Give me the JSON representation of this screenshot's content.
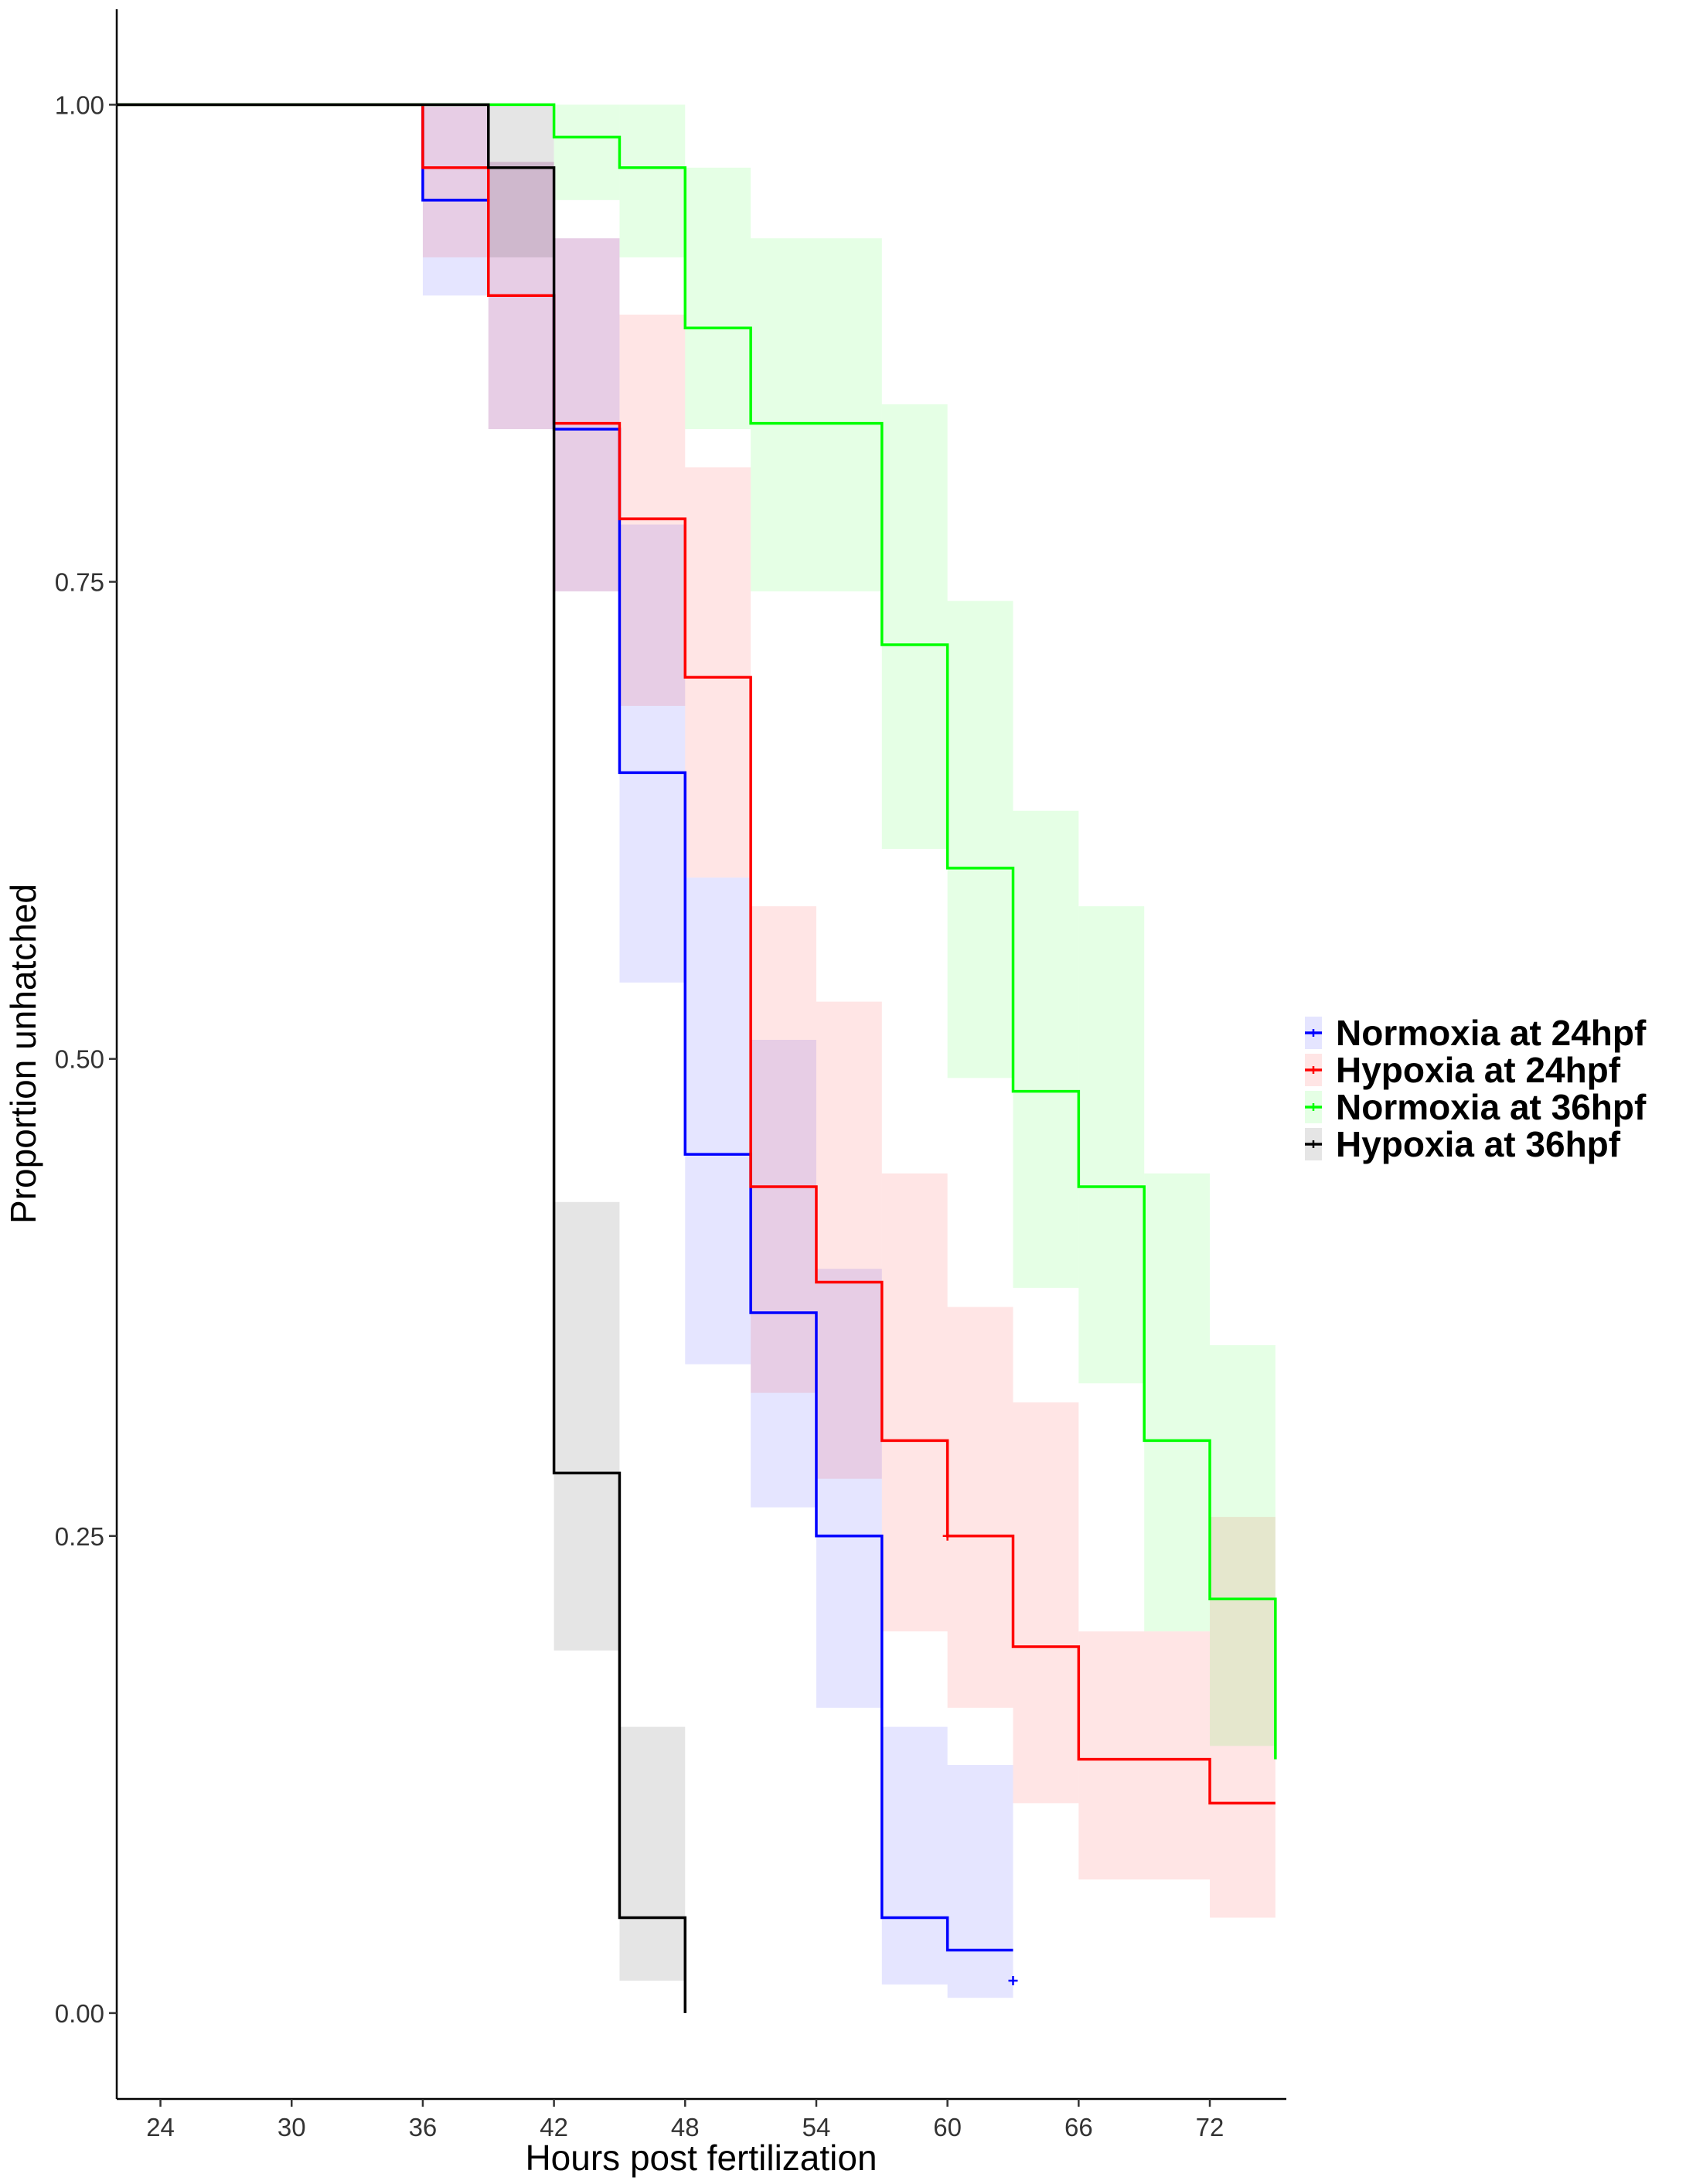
{
  "chart_data": {
    "type": "line",
    "subtype": "kaplan-meier step curves with confidence bands",
    "title": "",
    "xlabel": "Hours post fertilization",
    "ylabel": "Proportion unhatched",
    "xlim": [
      22,
      75.5
    ],
    "ylim": [
      -0.045,
      1.05
    ],
    "xticks": [
      24,
      30,
      36,
      42,
      48,
      54,
      60,
      66,
      72
    ],
    "xtick_labels": [
      "24",
      "30",
      "36",
      "42",
      "48",
      "54",
      "60",
      "66",
      "72"
    ],
    "yticks": [
      0,
      0.25,
      0.5,
      0.75,
      1
    ],
    "ytick_labels": [
      "0.00",
      "0.25",
      "0.50",
      "0.75",
      "1.00"
    ],
    "grid": false,
    "legend_position": "right",
    "series": [
      {
        "name": "Normoxia at 24hpf",
        "color": "#0000ff",
        "band_color": "#e5e5ff",
        "start_x": 22,
        "end_x": 63,
        "steps": [
          [
            36,
            0.95,
            0.9,
            1.0
          ],
          [
            39,
            0.9,
            0.83,
            0.97
          ],
          [
            42,
            0.83,
            0.745,
            0.93
          ],
          [
            45,
            0.783,
            0.685,
            0.89
          ],
          [
            45,
            0.65,
            0.54,
            0.78
          ],
          [
            48,
            0.45,
            0.34,
            0.595
          ],
          [
            51,
            0.367,
            0.265,
            0.51
          ],
          [
            54,
            0.25,
            0.16,
            0.39
          ],
          [
            57,
            0.05,
            0.015,
            0.15
          ],
          [
            60,
            0.033,
            0.008,
            0.13
          ]
        ],
        "censor_marks": [
          [
            63,
            0.017
          ]
        ]
      },
      {
        "name": "Hypoxia at 24hpf",
        "color": "#ff0000",
        "band_color": "#ffe5e5",
        "start_x": 22,
        "end_x": 75,
        "steps": [
          [
            36,
            0.967,
            0.92,
            1.0
          ],
          [
            39,
            0.9,
            0.83,
            0.97
          ],
          [
            42,
            0.833,
            0.745,
            0.93
          ],
          [
            45,
            0.783,
            0.685,
            0.89
          ],
          [
            48,
            0.7,
            0.595,
            0.81
          ],
          [
            51,
            0.433,
            0.325,
            0.58
          ],
          [
            54,
            0.383,
            0.28,
            0.53
          ],
          [
            57,
            0.3,
            0.2,
            0.44
          ],
          [
            60,
            0.25,
            0.16,
            0.37
          ],
          [
            63,
            0.192,
            0.11,
            0.32
          ],
          [
            66,
            0.133,
            0.07,
            0.2
          ],
          [
            72,
            0.11,
            0.05,
            0.26
          ]
        ],
        "censor_marks": [
          [
            60,
            0.25
          ]
        ]
      },
      {
        "name": "Normoxia at 36hpf",
        "color": "#00ff00",
        "band_color": "#e5ffe5",
        "start_x": 22,
        "end_x": 75,
        "steps": [
          [
            42,
            0.983,
            0.95,
            1.0
          ],
          [
            45,
            0.967,
            0.92,
            1.0
          ],
          [
            48,
            0.883,
            0.83,
            0.967
          ],
          [
            51,
            0.833,
            0.745,
            0.93
          ],
          [
            54,
            0.833,
            0.745,
            0.93
          ],
          [
            57,
            0.717,
            0.61,
            0.843
          ],
          [
            60,
            0.6,
            0.49,
            0.74
          ],
          [
            63,
            0.483,
            0.38,
            0.63
          ],
          [
            66,
            0.433,
            0.33,
            0.58
          ],
          [
            69,
            0.3,
            0.2,
            0.44
          ],
          [
            72,
            0.217,
            0.14,
            0.35
          ],
          [
            75,
            0.133,
            0.07,
            0.255
          ]
        ],
        "censor_marks": []
      },
      {
        "name": "Hypoxia at 36hpf",
        "color": "#000000",
        "band_color": "#e5e5e5",
        "start_x": 22,
        "end_x": 48,
        "steps": [
          [
            39,
            0.967,
            0.92,
            1.0
          ],
          [
            42,
            0.283,
            0.19,
            0.425
          ],
          [
            45,
            0.05,
            0.017,
            0.15
          ],
          [
            48,
            0.0,
            0.0,
            0.0
          ]
        ],
        "censor_marks": []
      }
    ]
  }
}
